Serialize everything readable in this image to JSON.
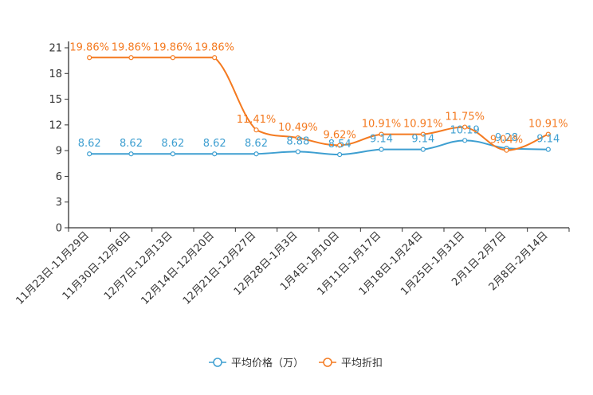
{
  "chart_data": {
    "type": "line",
    "title": "",
    "xlabel": "",
    "ylabel": "",
    "ylim": [
      0,
      21
    ],
    "yticks": [
      0,
      3,
      6,
      9,
      12,
      15,
      18,
      21
    ],
    "categories": [
      "11月23日-11月29日",
      "11月30日-12月6日",
      "12月7日-12月13日",
      "12月14日-12月20日",
      "12月21日-12月27日",
      "12月28日-1月3日",
      "1月4日-1月10日",
      "1月11日-1月17日",
      "1月18日-1月24日",
      "1月25日-1月31日",
      "2月1日-2月7日",
      "2月8日-2月14日"
    ],
    "series": [
      {
        "name": "平均价格（万）",
        "color": "#3e9fd1",
        "values": [
          8.62,
          8.62,
          8.62,
          8.62,
          8.62,
          8.88,
          8.54,
          9.14,
          9.14,
          10.19,
          9.28,
          9.14
        ],
        "labels": [
          "8.62",
          "8.62",
          "8.62",
          "8.62",
          "8.62",
          "8.88",
          "8.54",
          "9.14",
          "9.14",
          "10.19",
          "9.28",
          "9.14"
        ]
      },
      {
        "name": "平均折扣",
        "color": "#f47a20",
        "values": [
          19.86,
          19.86,
          19.86,
          19.86,
          11.41,
          10.49,
          9.62,
          10.91,
          10.91,
          11.75,
          9.04,
          10.91
        ],
        "labels": [
          "19.86%",
          "19.86%",
          "19.86%",
          "19.86%",
          "11.41%",
          "10.49%",
          "9.62%",
          "10.91%",
          "10.91%",
          "11.75%",
          "9.04%",
          "10.91%"
        ]
      }
    ],
    "legend": {
      "position": "bottom-center",
      "items": [
        "平均价格（万）",
        "平均折扣"
      ]
    }
  }
}
